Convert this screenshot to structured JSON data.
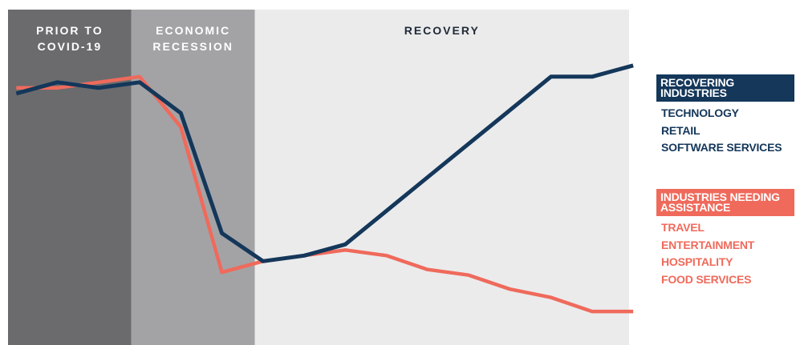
{
  "colors": {
    "phase_prior": "#6b6b6e",
    "phase_recession": "#a3a3a6",
    "phase_recovery": "#ebebec",
    "recovering": "#14375a",
    "needing": "#ef6a5b",
    "label_light": "#ffffff",
    "label_dark": "#1f2a36"
  },
  "chart_data": {
    "type": "line",
    "x": [
      1,
      2,
      3,
      4,
      5,
      6,
      7,
      8,
      9,
      10,
      11,
      12,
      13,
      14,
      15,
      16
    ],
    "phases": [
      {
        "lines": [
          "PRIOR TO",
          "COVID-19"
        ],
        "start": 0.8,
        "end": 3.8
      },
      {
        "lines": [
          "ECONOMIC",
          "RECESSION"
        ],
        "start": 3.8,
        "end": 6.8
      },
      {
        "lines": [
          "RECOVERY"
        ],
        "start": 6.8,
        "end": 15.9
      }
    ],
    "series": [
      {
        "name": "RECOVERING INDUSTRIES",
        "values": [
          90,
          94,
          92,
          94,
          83,
          40,
          30,
          32,
          36,
          48,
          60,
          72,
          84,
          96,
          96,
          100
        ]
      },
      {
        "name": "INDUSTRIES NEEDING ASSISTANCE",
        "values": [
          92,
          92,
          94,
          96,
          78,
          26,
          30,
          32,
          34,
          32,
          27,
          25,
          20,
          17,
          12,
          12
        ]
      }
    ],
    "ylim": [
      0,
      120
    ],
    "xlim": [
      0.8,
      15.9
    ],
    "grid": false
  },
  "legend": {
    "recovering": {
      "title_lines": [
        "RECOVERING",
        "INDUSTRIES"
      ],
      "items": [
        "TECHNOLOGY",
        "RETAIL",
        "SOFTWARE SERVICES"
      ]
    },
    "needing": {
      "title_lines": [
        "INDUSTRIES NEEDING",
        "ASSISTANCE"
      ],
      "items": [
        "TRAVEL",
        "ENTERTAINMENT",
        "HOSPITALITY",
        "FOOD SERVICES"
      ]
    }
  }
}
